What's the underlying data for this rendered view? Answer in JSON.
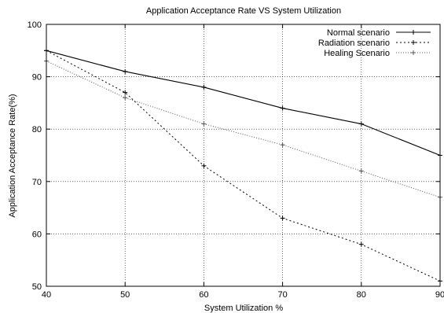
{
  "chart_data": {
    "type": "line",
    "title": "Application Acceptance Rate VS System Utilization",
    "xlabel": "System Utilization %",
    "ylabel": "Application Acceptance Rate(%)",
    "xlim": [
      40,
      90
    ],
    "ylim": [
      50,
      100
    ],
    "xticks": [
      "40",
      "50",
      "60",
      "70",
      "80",
      "90"
    ],
    "yticks": [
      "50",
      "60",
      "70",
      "80",
      "90",
      "100"
    ],
    "grid": true,
    "legend_position": "top-right",
    "x": [
      40,
      50,
      60,
      70,
      80,
      90
    ],
    "series": [
      {
        "name": "Normal scenario",
        "values": [
          95,
          91,
          88,
          84,
          81,
          75
        ],
        "color": "#000000",
        "style": "solid"
      },
      {
        "name": "Radiation scenario",
        "values": [
          95,
          87,
          73,
          63,
          58,
          51
        ],
        "color": "#000000",
        "style": "dotted"
      },
      {
        "name": "Healing Scenario",
        "values": [
          93,
          86,
          81,
          77,
          72,
          67
        ],
        "color": "#555555",
        "style": "fine-dotted"
      }
    ]
  }
}
